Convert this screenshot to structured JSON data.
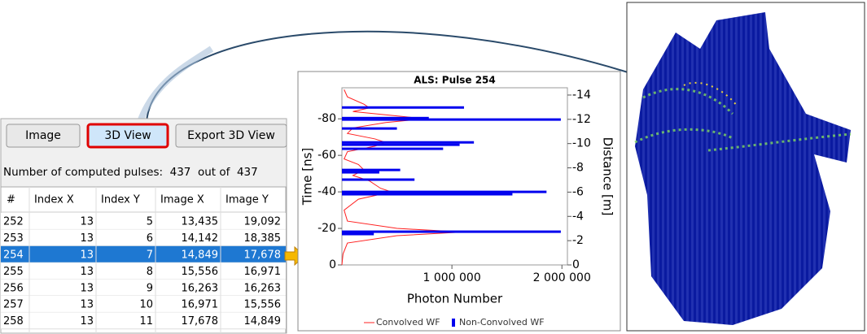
{
  "buttons": [
    "Image",
    "3D View",
    "Export 3D View"
  ],
  "active_button": 1,
  "status": "Number of computed pulses:  437  out of  437",
  "table": {
    "columns": [
      "#",
      "Index X",
      "Index Y",
      "Image X",
      "Image Y"
    ],
    "rows": [
      [
        "252",
        "13",
        "5",
        "13,435",
        "19,092"
      ],
      [
        "253",
        "13",
        "6",
        "14,142",
        "18,385"
      ],
      [
        "254",
        "13",
        "7",
        "14,849",
        "17,678"
      ],
      [
        "255",
        "13",
        "8",
        "15,556",
        "16,971"
      ],
      [
        "256",
        "13",
        "9",
        "16,263",
        "16,263"
      ],
      [
        "257",
        "13",
        "10",
        "16,971",
        "15,556"
      ],
      [
        "258",
        "13",
        "11",
        "17,678",
        "14,849"
      ]
    ],
    "selected_row": 2
  },
  "chart_data": {
    "type": "bar",
    "orientation": "horizontal",
    "title": "ALS: Pulse 254",
    "xlabel": "Photon Number",
    "ylabel": "Time [ns]",
    "y2label": "Distance [m]",
    "xlim": [
      0,
      2050000
    ],
    "xticks": [
      {
        "value": 1000000,
        "label": "1 000 000"
      },
      {
        "value": 2000000,
        "label": "2 000 000"
      }
    ],
    "ylim": [
      0,
      -97
    ],
    "yticks": [
      0,
      -20,
      -40,
      -60,
      -80
    ],
    "y2lim": [
      0,
      -14.6
    ],
    "y2ticks": [
      0,
      -2,
      -4,
      -6,
      -8,
      -10,
      -12,
      -14
    ],
    "series": [
      {
        "name": "Convolved WF",
        "type": "line",
        "color": "#ff2020",
        "y": [
          -96,
          -92,
          -88,
          -86,
          -84,
          -81,
          -80,
          -78,
          -75,
          -72,
          -69,
          -67,
          -65,
          -62,
          -58,
          -55,
          -52,
          -49,
          -46,
          -42,
          -40,
          -36,
          -30,
          -24,
          -20,
          -18,
          -16,
          -12,
          -6,
          0
        ],
        "values": [
          20000,
          50000,
          200000,
          250000,
          100000,
          600000,
          750000,
          400000,
          100000,
          50000,
          300000,
          400000,
          300000,
          50000,
          20000,
          150000,
          200000,
          100000,
          250000,
          350000,
          450000,
          150000,
          20000,
          50000,
          500000,
          1100000,
          500000,
          50000,
          10000,
          0
        ]
      },
      {
        "name": "Non-Convolved WF",
        "type": "bar",
        "color": "#0000ee",
        "y": [
          -86.2,
          -80.4,
          -79.6,
          -74.7,
          -67.1,
          -65.8,
          -63.6,
          -52,
          -50.7,
          -46.7,
          -40,
          -38.7,
          -18.2,
          -16.9
        ],
        "values": [
          1110000,
          790000,
          1990000,
          500000,
          1200000,
          1070000,
          920000,
          530000,
          340000,
          660000,
          1860000,
          1550000,
          1990000,
          290000
        ]
      }
    ],
    "legend": "bottom"
  }
}
